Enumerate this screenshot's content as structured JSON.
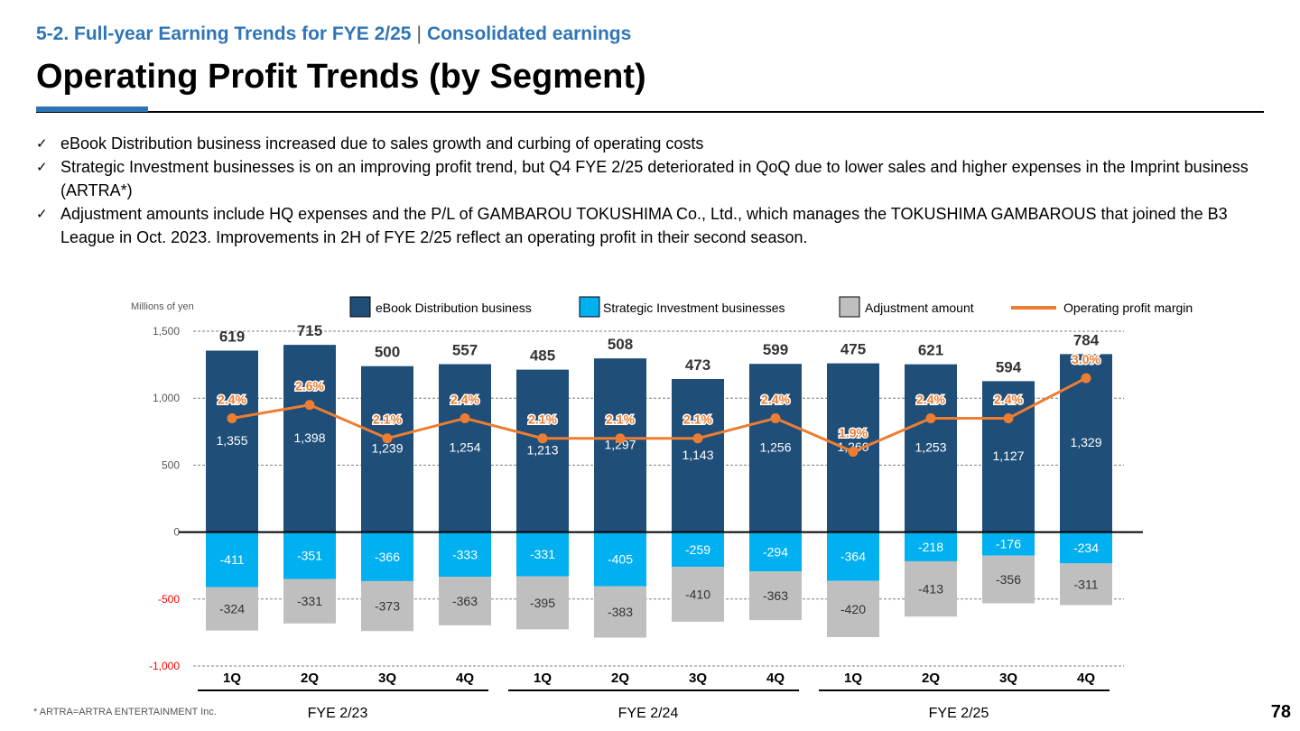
{
  "header": {
    "section": "5-2. Full-year Earning Trends for FYE 2/25",
    "separator": "|",
    "subsection": "Consolidated earnings",
    "title": "Operating Profit Trends (by Segment)"
  },
  "bullets": [
    "eBook Distribution business increased due to sales growth and curbing of operating costs",
    "Strategic Investment businesses is on an improving profit trend, but Q4 FYE 2/25 deteriorated in QoQ due to lower sales and higher expenses in the Imprint business (ARTRA*)",
    "Adjustment amounts include HQ expenses and the P/L of GAMBAROU TOKUSHIMA Co., Ltd., which manages the TOKUSHIMA GAMBAROUS that joined the B3 League in Oct. 2023. Improvements in 2H of FYE 2/25 reflect an operating profit in their second season."
  ],
  "check_icon": "check-mark-icon",
  "footnote": "* ARTRA=ARTRA ENTERTAINMENT Inc.",
  "page_number": "78",
  "chart_data": {
    "type": "bar",
    "ylabel": "Millions of yen",
    "ylim": [
      -1000,
      1500
    ],
    "yticks": [
      1500,
      1000,
      500,
      0,
      -500,
      -1000
    ],
    "ytick_labels": [
      "1,500",
      "1,000",
      "500",
      "0",
      "-500",
      "-1,000"
    ],
    "grid": true,
    "legend_position": "top",
    "categories": [
      "1Q",
      "2Q",
      "3Q",
      "4Q",
      "1Q",
      "2Q",
      "3Q",
      "4Q",
      "1Q",
      "2Q",
      "3Q",
      "4Q"
    ],
    "groups": [
      {
        "label": "FYE 2/23",
        "span": [
          0,
          3
        ]
      },
      {
        "label": "FYE 2/24",
        "span": [
          4,
          7
        ]
      },
      {
        "label": "FYE 2/25",
        "span": [
          8,
          11
        ]
      }
    ],
    "totals": [
      619,
      715,
      500,
      557,
      485,
      508,
      473,
      599,
      475,
      621,
      594,
      784
    ],
    "series": [
      {
        "name": "eBook Distribution business",
        "color": "#1f4e79",
        "values": [
          1355,
          1398,
          1239,
          1254,
          1213,
          1297,
          1143,
          1256,
          1260,
          1253,
          1127,
          1329
        ]
      },
      {
        "name": "Strategic Investment businesses",
        "color": "#00b0f0",
        "values": [
          -411,
          -351,
          -366,
          -333,
          -331,
          -405,
          -259,
          -294,
          -364,
          -218,
          -176,
          -234
        ]
      },
      {
        "name": "Adjustment amount",
        "color": "#bfbfbf",
        "values": [
          -324,
          -331,
          -373,
          -363,
          -395,
          -383,
          -410,
          -363,
          -420,
          -413,
          -356,
          -311
        ]
      }
    ],
    "margin_series": {
      "name": "Operating profit margin",
      "color": "#ed7d31",
      "values": [
        2.4,
        2.6,
        2.1,
        2.4,
        2.1,
        2.1,
        2.1,
        2.4,
        1.9,
        2.4,
        2.4,
        3.0
      ],
      "labels": [
        "2.4%",
        "2.6%",
        "2.1%",
        "2.4%",
        "2.1%",
        "2.1%",
        "2.1%",
        "2.4%",
        "1.9%",
        "2.4%",
        "2.4%",
        "3.0%"
      ]
    }
  }
}
